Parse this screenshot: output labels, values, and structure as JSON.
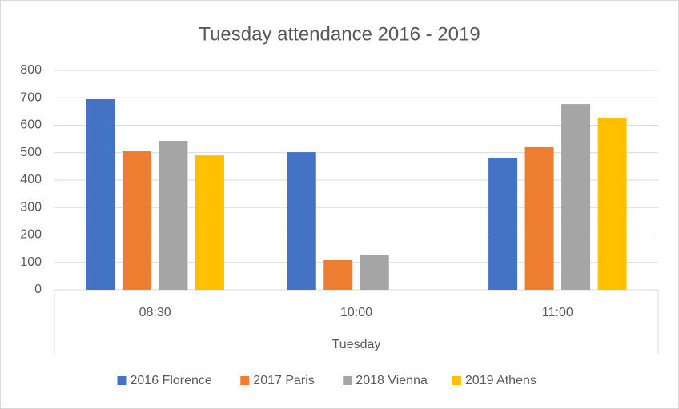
{
  "chart_data": {
    "type": "bar",
    "title": "Tuesday attendance 2016 - 2019",
    "categories": [
      "08:30",
      "10:00",
      "11:00"
    ],
    "group_label": "Tuesday",
    "series": [
      {
        "name": "2016 Florence",
        "color": "#4472c4",
        "values": [
          695,
          502,
          479
        ]
      },
      {
        "name": "2017 Paris",
        "color": "#ed7d31",
        "values": [
          505,
          108,
          520
        ]
      },
      {
        "name": "2018 Vienna",
        "color": "#a5a5a5",
        "values": [
          543,
          128,
          677
        ]
      },
      {
        "name": "2019 Athens",
        "color": "#ffc000",
        "values": [
          490,
          null,
          628
        ]
      }
    ],
    "ylim": [
      0,
      800
    ],
    "yticks": [
      0,
      100,
      200,
      300,
      400,
      500,
      600,
      700,
      800
    ],
    "grid": true,
    "legend": "bottom"
  }
}
